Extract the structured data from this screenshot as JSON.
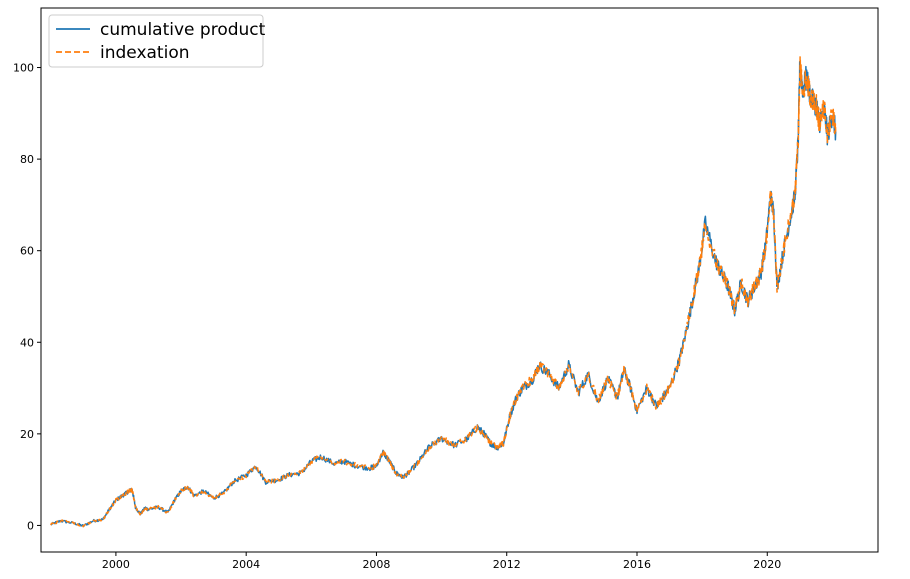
{
  "chart_data": {
    "type": "line",
    "title": "",
    "xlabel": "",
    "ylabel": "",
    "xlim": [
      1997.7,
      2023.4
    ],
    "ylim": [
      -5.8,
      113
    ],
    "xticks": [
      2000,
      2004,
      2008,
      2012,
      2016,
      2020
    ],
    "xtick_labels": [
      "2000",
      "2004",
      "2008",
      "2012",
      "2016",
      "2020"
    ],
    "yticks": [
      0,
      20,
      40,
      60,
      80,
      100
    ],
    "ytick_labels": [
      "0",
      "20",
      "40",
      "60",
      "80",
      "100"
    ],
    "grid": false,
    "legend": {
      "placement": "top-left"
    },
    "series": [
      {
        "name": "cumulative product",
        "color": "#1f77b4",
        "style": "solid",
        "x": [
          1998.0,
          1998.3,
          1998.7,
          1999.0,
          1999.3,
          1999.6,
          1999.8,
          2000.0,
          2000.2,
          2000.4,
          2000.5,
          2000.6,
          2000.75,
          2000.9,
          2001.0,
          2001.3,
          2001.6,
          2001.8,
          2002.0,
          2002.2,
          2002.4,
          2002.7,
          2003.0,
          2003.3,
          2003.6,
          2004.0,
          2004.3,
          2004.6,
          2005.0,
          2005.3,
          2005.7,
          2006.0,
          2006.3,
          2006.7,
          2007.0,
          2007.4,
          2007.8,
          2008.0,
          2008.2,
          2008.4,
          2008.6,
          2008.8,
          2009.0,
          2009.3,
          2009.6,
          2010.0,
          2010.4,
          2010.8,
          2011.1,
          2011.3,
          2011.5,
          2011.7,
          2011.9,
          2012.1,
          2012.3,
          2012.5,
          2012.8,
          2013.0,
          2013.3,
          2013.6,
          2013.9,
          2014.2,
          2014.5,
          2014.8,
          2015.1,
          2015.4,
          2015.6,
          2015.8,
          2016.0,
          2016.3,
          2016.6,
          2016.8,
          2017.0,
          2017.3,
          2017.5,
          2017.7,
          2017.9,
          2018.1,
          2018.4,
          2018.6,
          2018.8,
          2019.0,
          2019.2,
          2019.4,
          2019.6,
          2019.8,
          2019.95,
          2020.1,
          2020.2,
          2020.3,
          2020.5,
          2020.7,
          2020.85,
          2020.95,
          2021.0,
          2021.1,
          2021.2,
          2021.35,
          2021.5,
          2021.6,
          2021.75,
          2021.85,
          2022.0,
          2022.1
        ],
        "values": [
          0.2,
          1.0,
          0.5,
          -0.1,
          1.0,
          1.3,
          3.5,
          5.5,
          6.5,
          7.5,
          7.8,
          4.0,
          2.5,
          3.8,
          3.5,
          4.0,
          2.8,
          5.5,
          7.5,
          8.5,
          6.5,
          7.5,
          6.0,
          7.0,
          9.5,
          11,
          13,
          9.5,
          10,
          11,
          11.5,
          14,
          15,
          13.5,
          14,
          13,
          12.5,
          13,
          16,
          14,
          11.5,
          10.5,
          11.5,
          14,
          17,
          19,
          17.5,
          19,
          21.5,
          20,
          18,
          17,
          18,
          24,
          28,
          30,
          32,
          35,
          33,
          30,
          35,
          29,
          33,
          27,
          32,
          28,
          34,
          30,
          25,
          30,
          26,
          28,
          30,
          36,
          42,
          49,
          56,
          66,
          58,
          55,
          52,
          47,
          53,
          49,
          52,
          55,
          61,
          72,
          68,
          52,
          60,
          67,
          72,
          84,
          100,
          95,
          98,
          93,
          92,
          88,
          91,
          85,
          90,
          86
        ]
      },
      {
        "name": "indexation",
        "color": "#ff7f0e",
        "style": "dashed",
        "x": [
          1998.0,
          1998.3,
          1998.7,
          1999.0,
          1999.3,
          1999.6,
          1999.8,
          2000.0,
          2000.2,
          2000.4,
          2000.5,
          2000.6,
          2000.75,
          2000.9,
          2001.0,
          2001.3,
          2001.6,
          2001.8,
          2002.0,
          2002.2,
          2002.4,
          2002.7,
          2003.0,
          2003.3,
          2003.6,
          2004.0,
          2004.3,
          2004.6,
          2005.0,
          2005.3,
          2005.7,
          2006.0,
          2006.3,
          2006.7,
          2007.0,
          2007.4,
          2007.8,
          2008.0,
          2008.2,
          2008.4,
          2008.6,
          2008.8,
          2009.0,
          2009.3,
          2009.6,
          2010.0,
          2010.4,
          2010.8,
          2011.1,
          2011.3,
          2011.5,
          2011.7,
          2011.9,
          2012.1,
          2012.3,
          2012.5,
          2012.8,
          2013.0,
          2013.3,
          2013.6,
          2013.9,
          2014.2,
          2014.5,
          2014.8,
          2015.1,
          2015.4,
          2015.6,
          2015.8,
          2016.0,
          2016.3,
          2016.6,
          2016.8,
          2017.0,
          2017.3,
          2017.5,
          2017.7,
          2017.9,
          2018.1,
          2018.4,
          2018.6,
          2018.8,
          2019.0,
          2019.2,
          2019.4,
          2019.6,
          2019.8,
          2019.95,
          2020.1,
          2020.2,
          2020.3,
          2020.5,
          2020.7,
          2020.85,
          2020.95,
          2021.0,
          2021.1,
          2021.2,
          2021.35,
          2021.5,
          2021.6,
          2021.75,
          2021.85,
          2022.0,
          2022.1
        ],
        "values": [
          0.2,
          1.0,
          0.5,
          -0.1,
          1.0,
          1.3,
          3.5,
          5.5,
          6.5,
          7.5,
          7.8,
          4.0,
          2.5,
          3.8,
          3.5,
          4.0,
          2.8,
          5.5,
          7.5,
          8.5,
          6.5,
          7.5,
          6.0,
          7.0,
          9.5,
          11,
          13,
          9.5,
          10,
          11,
          11.5,
          14,
          15,
          13.5,
          14,
          13,
          12.5,
          13,
          16,
          14,
          11.5,
          10.5,
          11.5,
          14,
          17,
          19,
          17.5,
          19,
          21.5,
          20,
          18,
          17,
          18,
          24,
          28,
          30,
          32,
          35,
          33,
          30,
          35,
          29,
          33,
          27,
          32,
          28,
          34,
          30,
          25,
          30,
          26,
          28,
          30,
          36,
          42,
          49,
          56,
          66,
          58,
          55,
          52,
          47,
          53,
          49,
          52,
          55,
          61,
          72,
          68,
          52,
          60,
          67,
          72,
          84,
          100,
          95,
          98,
          93,
          92,
          88,
          91,
          85,
          90,
          86
        ]
      }
    ]
  }
}
